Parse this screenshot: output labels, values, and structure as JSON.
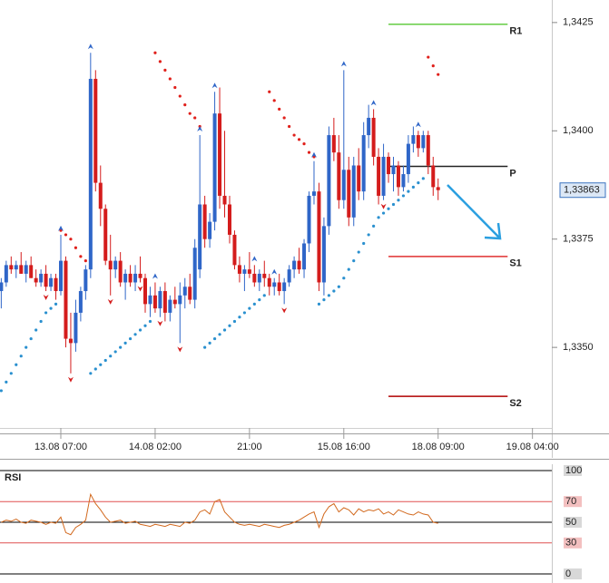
{
  "chart_data": {
    "type": "candlestick",
    "xlim": [
      -0.25,
      110.9
    ],
    "xticks": [
      {
        "value": 12,
        "label": "13.08 07:00"
      },
      {
        "value": 31,
        "label": "14.08 02:00"
      },
      {
        "value": 50,
        "label": "21:00"
      },
      {
        "value": 69,
        "label": "15.08 16:00"
      },
      {
        "value": 88,
        "label": "18.08 09:00"
      },
      {
        "value": 107,
        "label": "19.08 04:00"
      }
    ],
    "ylim": [
      1.33314,
      1.34302
    ],
    "yticks": [
      {
        "value": 1.3425,
        "label": "1,3425"
      },
      {
        "value": 1.34,
        "label": "1,3400"
      },
      {
        "value": 1.3375,
        "label": "1,3375"
      },
      {
        "value": 1.335,
        "label": "1,3350"
      }
    ],
    "grid": false,
    "up_color": "#2f66c8",
    "down_color": "#d41c1c",
    "ohlc": [
      [
        1.3363,
        1.3366,
        1.3359,
        1.3365
      ],
      [
        1.3365,
        1.337,
        1.3364,
        1.3369
      ],
      [
        1.3369,
        1.3371,
        1.3367,
        1.3368
      ],
      [
        1.3368,
        1.337,
        1.3366,
        1.3369
      ],
      [
        1.3369,
        1.3372,
        1.3367,
        1.3367
      ],
      [
        1.3367,
        1.337,
        1.3365,
        1.3369
      ],
      [
        1.3369,
        1.3371,
        1.3366,
        1.3366
      ],
      [
        1.3366,
        1.3368,
        1.3364,
        1.3365
      ],
      [
        1.3365,
        1.3368,
        1.3364,
        1.3367
      ],
      [
        1.3367,
        1.3369,
        1.3363,
        1.3364
      ],
      [
        1.3364,
        1.3367,
        1.3363,
        1.3366
      ],
      [
        1.3366,
        1.3367,
        1.3361,
        1.3363
      ],
      [
        1.3363,
        1.3376,
        1.3362,
        1.337
      ],
      [
        1.337,
        1.3371,
        1.335,
        1.3352
      ],
      [
        1.3352,
        1.3358,
        1.3344,
        1.3351
      ],
      [
        1.3351,
        1.3361,
        1.3349,
        1.3358
      ],
      [
        1.3358,
        1.3364,
        1.3356,
        1.3363
      ],
      [
        1.3363,
        1.3369,
        1.3361,
        1.3368
      ],
      [
        1.3368,
        1.3418,
        1.3366,
        1.3412
      ],
      [
        1.3412,
        1.3414,
        1.3386,
        1.3388
      ],
      [
        1.3388,
        1.3392,
        1.3378,
        1.3382
      ],
      [
        1.3382,
        1.3383,
        1.3369,
        1.337
      ],
      [
        1.337,
        1.3376,
        1.3362,
        1.3368
      ],
      [
        1.3368,
        1.3371,
        1.3366,
        1.337
      ],
      [
        1.337,
        1.3372,
        1.3364,
        1.3365
      ],
      [
        1.3365,
        1.3368,
        1.3361,
        1.3367
      ],
      [
        1.3367,
        1.3369,
        1.3364,
        1.3365
      ],
      [
        1.3365,
        1.3369,
        1.3363,
        1.3367
      ],
      [
        1.3367,
        1.3371,
        1.3365,
        1.3366
      ],
      [
        1.3366,
        1.3367,
        1.3358,
        1.336
      ],
      [
        1.336,
        1.3364,
        1.3357,
        1.3362
      ],
      [
        1.3362,
        1.3365,
        1.3358,
        1.3359
      ],
      [
        1.3359,
        1.3364,
        1.3357,
        1.3363
      ],
      [
        1.3363,
        1.3365,
        1.3356,
        1.3358
      ],
      [
        1.3358,
        1.3362,
        1.3356,
        1.3361
      ],
      [
        1.3361,
        1.3364,
        1.3359,
        1.336
      ],
      [
        1.336,
        1.3365,
        1.3351,
        1.3362
      ],
      [
        1.3362,
        1.3366,
        1.3359,
        1.3364
      ],
      [
        1.3364,
        1.3367,
        1.336,
        1.3361
      ],
      [
        1.3361,
        1.3375,
        1.3359,
        1.3373
      ],
      [
        1.3368,
        1.3399,
        1.3366,
        1.3383
      ],
      [
        1.3383,
        1.3385,
        1.3373,
        1.3375
      ],
      [
        1.3375,
        1.3381,
        1.3373,
        1.3379
      ],
      [
        1.3379,
        1.3409,
        1.3377,
        1.3404
      ],
      [
        1.3404,
        1.341,
        1.3382,
        1.3385
      ],
      [
        1.3385,
        1.34,
        1.338,
        1.3383
      ],
      [
        1.3383,
        1.3385,
        1.3374,
        1.3376
      ],
      [
        1.3376,
        1.3377,
        1.3368,
        1.3369
      ],
      [
        1.3369,
        1.3371,
        1.3365,
        1.3367
      ],
      [
        1.3367,
        1.3369,
        1.3363,
        1.3368
      ],
      [
        1.3368,
        1.3372,
        1.3366,
        1.3367
      ],
      [
        1.3367,
        1.3369,
        1.3364,
        1.3365
      ],
      [
        1.3365,
        1.3368,
        1.3363,
        1.3367
      ],
      [
        1.3367,
        1.337,
        1.3364,
        1.3366
      ],
      [
        1.3366,
        1.3367,
        1.3362,
        1.3364
      ],
      [
        1.3364,
        1.3366,
        1.3362,
        1.3365
      ],
      [
        1.3365,
        1.3367,
        1.3362,
        1.3363
      ],
      [
        1.3363,
        1.3366,
        1.336,
        1.3365
      ],
      [
        1.3365,
        1.3369,
        1.3364,
        1.3368
      ],
      [
        1.3368,
        1.3371,
        1.3366,
        1.337
      ],
      [
        1.337,
        1.3373,
        1.3367,
        1.3368
      ],
      [
        1.3368,
        1.3375,
        1.3366,
        1.3374
      ],
      [
        1.3374,
        1.3386,
        1.3372,
        1.3385
      ],
      [
        1.3385,
        1.3393,
        1.3383,
        1.3386
      ],
      [
        1.3386,
        1.3388,
        1.3363,
        1.3365
      ],
      [
        1.3365,
        1.338,
        1.3362,
        1.3378
      ],
      [
        1.3378,
        1.3401,
        1.3376,
        1.3399
      ],
      [
        1.3399,
        1.3403,
        1.3393,
        1.3395
      ],
      [
        1.3395,
        1.3399,
        1.3382,
        1.3384
      ],
      [
        1.3384,
        1.3414,
        1.3382,
        1.3391
      ],
      [
        1.3391,
        1.3394,
        1.3378,
        1.338
      ],
      [
        1.338,
        1.3394,
        1.3378,
        1.3392
      ],
      [
        1.3392,
        1.3396,
        1.3384,
        1.3386
      ],
      [
        1.3386,
        1.3402,
        1.3384,
        1.3399
      ],
      [
        1.3399,
        1.3406,
        1.3396,
        1.3403
      ],
      [
        1.3403,
        1.3405,
        1.3392,
        1.3394
      ],
      [
        1.3394,
        1.3396,
        1.3383,
        1.3385
      ],
      [
        1.3385,
        1.3397,
        1.3384,
        1.3394
      ],
      [
        1.3394,
        1.3395,
        1.3388,
        1.339
      ],
      [
        1.339,
        1.3394,
        1.3386,
        1.3392
      ],
      [
        1.3392,
        1.3393,
        1.3385,
        1.3387
      ],
      [
        1.3387,
        1.3392,
        1.3386,
        1.339
      ],
      [
        1.339,
        1.3399,
        1.3388,
        1.3397
      ],
      [
        1.3397,
        1.3401,
        1.3395,
        1.3399
      ],
      [
        1.3399,
        1.34,
        1.3394,
        1.3396
      ],
      [
        1.3396,
        1.34,
        1.3395,
        1.3399
      ],
      [
        1.3399,
        1.34,
        1.339,
        1.3392
      ],
      [
        1.3392,
        1.3394,
        1.3385,
        1.3387
      ],
      [
        1.3387,
        1.3389,
        1.3384,
        1.33863
      ]
    ],
    "sar": {
      "above_color": "#e0201b",
      "below_color": "#2a90cf",
      "values": [
        1.334,
        1.3342,
        1.3344,
        1.3346,
        1.3348,
        1.335,
        1.3352,
        1.3354,
        1.3356,
        1.3358,
        1.3359,
        1.336,
        1.3377,
        1.3376,
        1.3375,
        1.3373,
        1.3371,
        1.337,
        1.3344,
        1.3345,
        1.3346,
        1.3347,
        1.3348,
        1.3349,
        1.335,
        1.3351,
        1.3352,
        1.3353,
        1.3354,
        1.3355,
        1.3356,
        1.3418,
        1.3416,
        1.3414,
        1.3412,
        1.341,
        1.3408,
        1.3406,
        1.3404,
        1.3403,
        1.3401,
        1.335,
        1.3351,
        1.3352,
        1.3353,
        1.3354,
        1.3355,
        1.3356,
        1.3357,
        1.3358,
        1.3359,
        1.336,
        1.3361,
        1.3362,
        1.3409,
        1.3407,
        1.3405,
        1.3403,
        1.3401,
        1.3399,
        1.3398,
        1.3397,
        1.3395,
        1.3394,
        1.336,
        1.3361,
        1.3362,
        1.3363,
        1.3364,
        1.3366,
        1.3368,
        1.337,
        1.3372,
        1.3374,
        1.3376,
        1.3378,
        1.338,
        1.3381,
        1.3382,
        1.3383,
        1.3384,
        1.3385,
        1.3386,
        1.3387,
        1.3388,
        1.3389,
        1.3417,
        1.3415,
        1.3413
      ]
    },
    "fractals": {
      "up_color": "#2f66c8",
      "down_color": "#d41c1c",
      "up": [
        12,
        18,
        31,
        40,
        43,
        51,
        55,
        63,
        69,
        75,
        84
      ],
      "down": [
        9,
        14,
        22,
        28,
        32,
        36,
        57,
        77
      ]
    },
    "pivot_range": [
      78,
      102
    ],
    "pivots": [
      {
        "name": "R1",
        "value": 1.34246,
        "color": "#66cc44"
      },
      {
        "name": "P",
        "value": 1.33918,
        "color": "#222222"
      },
      {
        "name": "S1",
        "value": 1.3371,
        "color": "#e03030"
      },
      {
        "name": "S2",
        "value": 1.33387,
        "color": "#b00000"
      }
    ],
    "last_price": {
      "value": 1.33863,
      "label": "1,33863"
    },
    "rsi": {
      "title": "RSI",
      "color": "#d2691e",
      "ylim": [
        0,
        100
      ],
      "yticks": [
        100,
        70,
        50,
        30,
        0
      ],
      "level_lines": [
        70,
        50,
        30
      ],
      "level_colors": [
        "#e05050",
        "#000000",
        "#e05050"
      ],
      "values": [
        50,
        52,
        51,
        53,
        50,
        49,
        52,
        51,
        50,
        48,
        50,
        49,
        55,
        40,
        38,
        45,
        48,
        52,
        77,
        68,
        62,
        55,
        50,
        51,
        52,
        49,
        50,
        51,
        48,
        47,
        46,
        48,
        47,
        46,
        48,
        47,
        46,
        50,
        49,
        52,
        60,
        62,
        58,
        70,
        72,
        60,
        55,
        50,
        48,
        47,
        48,
        47,
        46,
        48,
        47,
        46,
        45,
        47,
        48,
        50,
        52,
        55,
        58,
        60,
        45,
        58,
        65,
        68,
        60,
        64,
        62,
        57,
        63,
        60,
        62,
        61,
        63,
        58,
        60,
        57,
        62,
        60,
        58,
        57,
        60,
        58,
        57,
        50,
        49
      ]
    }
  }
}
